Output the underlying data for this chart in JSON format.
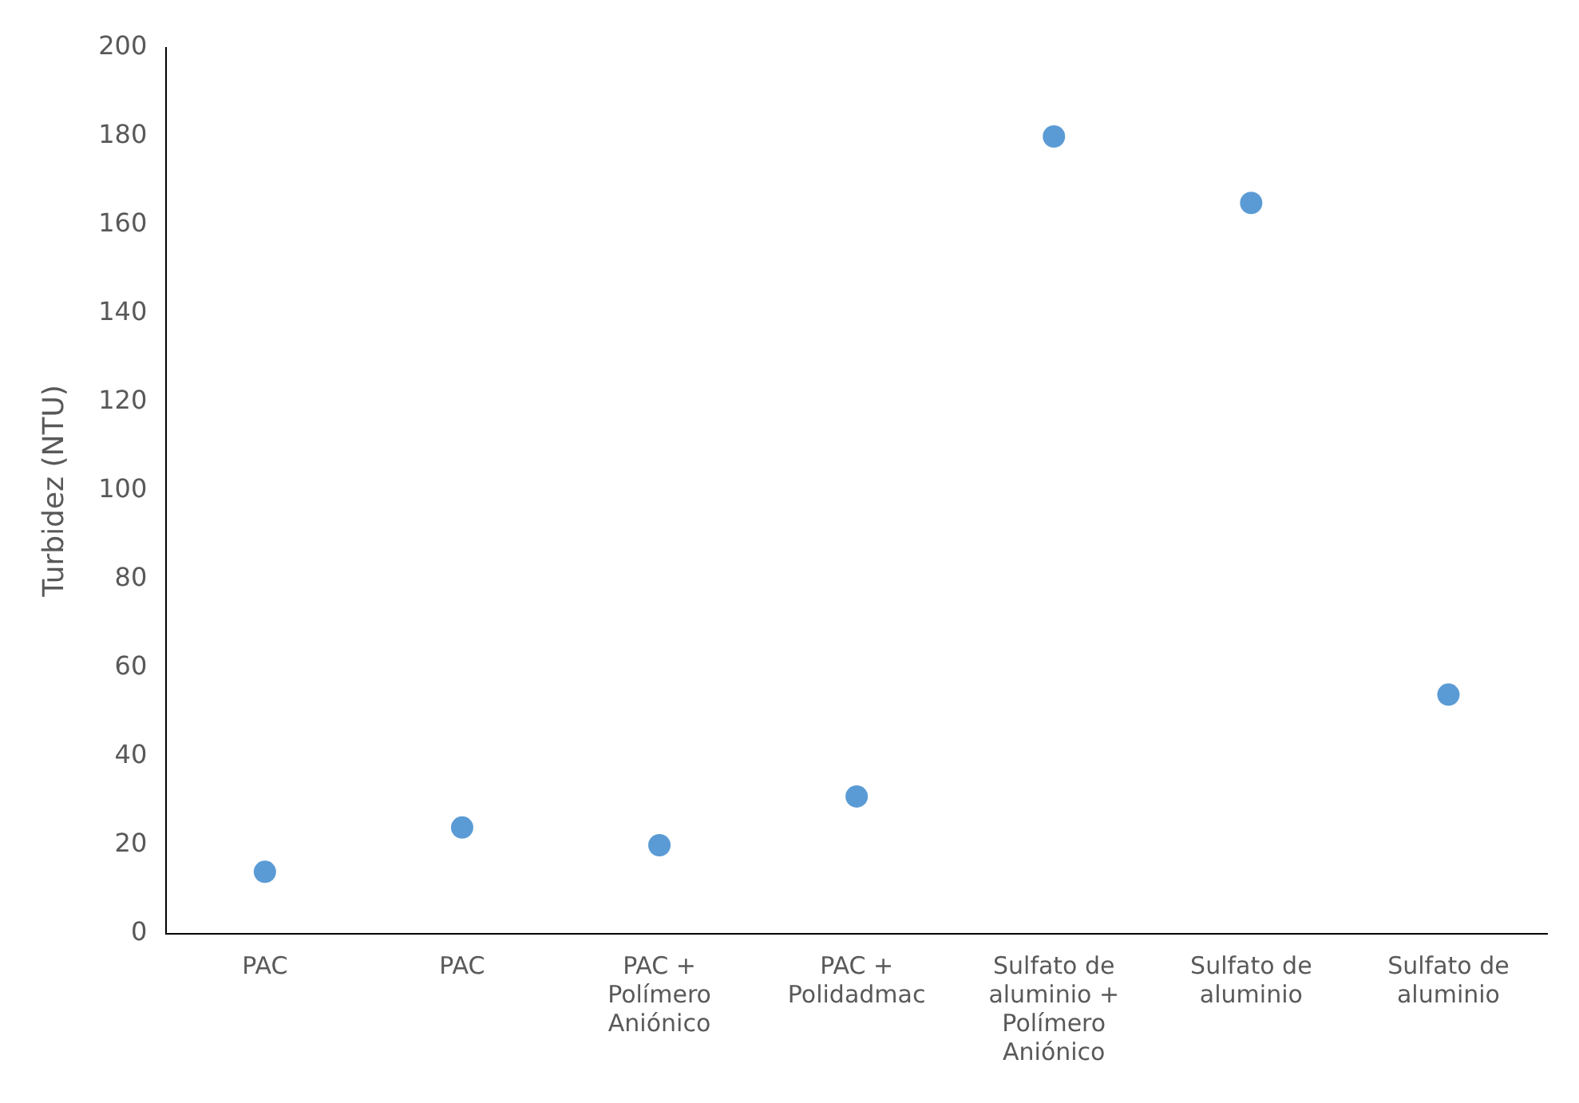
{
  "chart_data": {
    "type": "scatter",
    "ylabel": "Turbidez (NTU)",
    "categories": [
      "PAC",
      "PAC",
      "PAC + Polímero Aniónico",
      "PAC + Polidadmac",
      "Sulfato de aluminio + Polímero Aniónico",
      "Sulfato de aluminio",
      "Sulfato de aluminio"
    ],
    "values": [
      14,
      24,
      20,
      31,
      180,
      165,
      54
    ],
    "color": "#5b9bd5",
    "marker": "circle",
    "ylim": [
      0,
      200
    ],
    "yticks": [
      0,
      20,
      40,
      60,
      80,
      100,
      120,
      140,
      160,
      180,
      200
    ],
    "grid": false,
    "legend": false
  }
}
